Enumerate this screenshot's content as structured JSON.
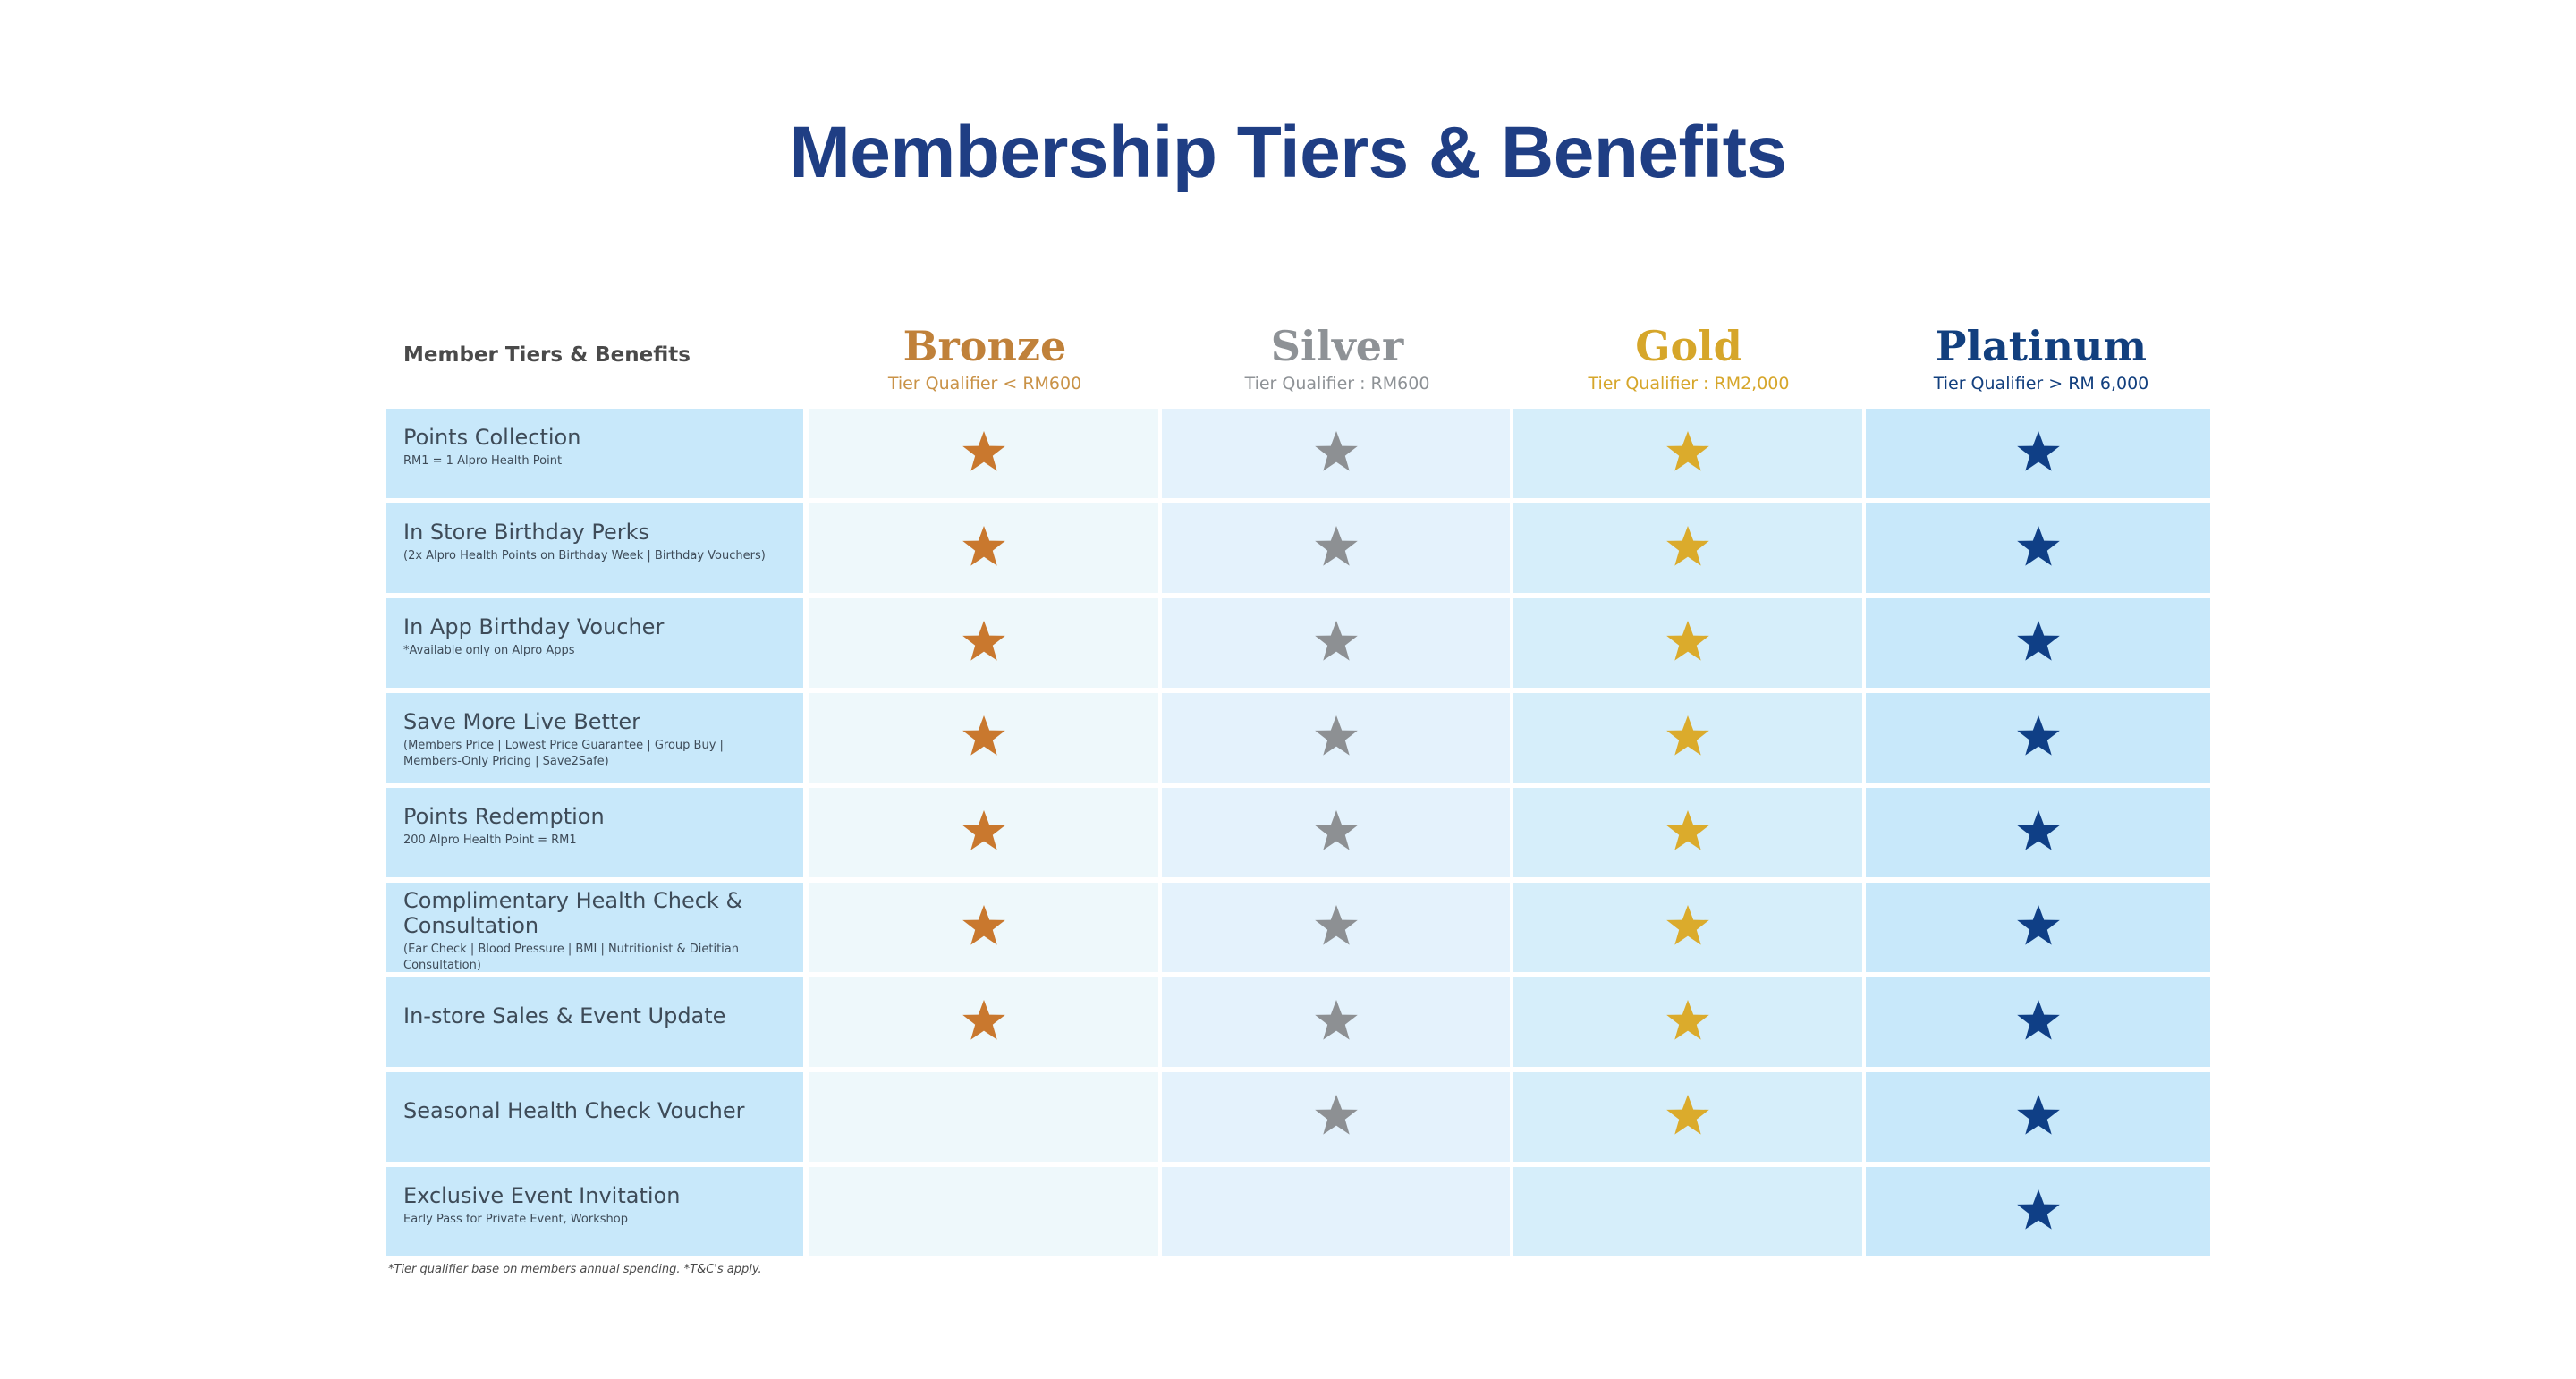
{
  "title": "Membership Tiers & Benefits",
  "header": {
    "first_column": "Member Tiers & Benefits",
    "tiers": [
      {
        "name": "Bronze",
        "qualifier": "Tier Qualifier < RM600",
        "name_color": "#c0813a",
        "qual_color": "#c99247",
        "star_color": "#c9782e"
      },
      {
        "name": "Silver",
        "qualifier": "Tier Qualifier : RM600",
        "name_color": "#8e9296",
        "qual_color": "#8e9296",
        "star_color": "#8d9093"
      },
      {
        "name": "Gold",
        "qualifier": "Tier Qualifier : RM2,000",
        "name_color": "#d6a62a",
        "qual_color": "#d6a62a",
        "star_color": "#dbab2c"
      },
      {
        "name": "Platinum",
        "qualifier": "Tier Qualifier > RM 6,000",
        "name_color": "#123f7e",
        "qual_color": "#123f7e",
        "star_color": "#0f3f86"
      }
    ]
  },
  "benefits": [
    {
      "label": "Points Collection",
      "sub": "RM1 = 1 Alpro Health Point",
      "stars": [
        true,
        true,
        true,
        true
      ]
    },
    {
      "label": "In Store Birthday Perks",
      "sub": "(2x Alpro Health Points on Birthday Week | Birthday Vouchers)",
      "stars": [
        true,
        true,
        true,
        true
      ]
    },
    {
      "label": "In App Birthday Voucher",
      "sub": "*Available only on Alpro Apps",
      "stars": [
        true,
        true,
        true,
        true
      ]
    },
    {
      "label": "Save More Live Better",
      "sub": "(Members Price | Lowest Price Guarantee | Group Buy | Members-Only Pricing | Save2Safe)",
      "stars": [
        true,
        true,
        true,
        true
      ]
    },
    {
      "label": "Points Redemption",
      "sub": "200 Alpro Health Point = RM1",
      "stars": [
        true,
        true,
        true,
        true
      ]
    },
    {
      "label": "Complimentary Health Check & Consultation",
      "sub": "(Ear Check | Blood Pressure | BMI | Nutritionist & Dietitian Consultation)",
      "stars": [
        true,
        true,
        true,
        true
      ]
    },
    {
      "label": "In-store Sales & Event Update",
      "sub": "",
      "stars": [
        true,
        true,
        true,
        true
      ]
    },
    {
      "label": "Seasonal Health Check Voucher",
      "sub": "",
      "stars": [
        false,
        true,
        true,
        true
      ]
    },
    {
      "label": "Exclusive Event Invitation",
      "sub": "Early Pass for Private Event, Workshop",
      "stars": [
        false,
        false,
        false,
        true
      ]
    }
  ],
  "footnote": "*Tier qualifier base on members annual spending. *T&C's apply.",
  "icons": {
    "benefit_marker": "star-icon"
  }
}
